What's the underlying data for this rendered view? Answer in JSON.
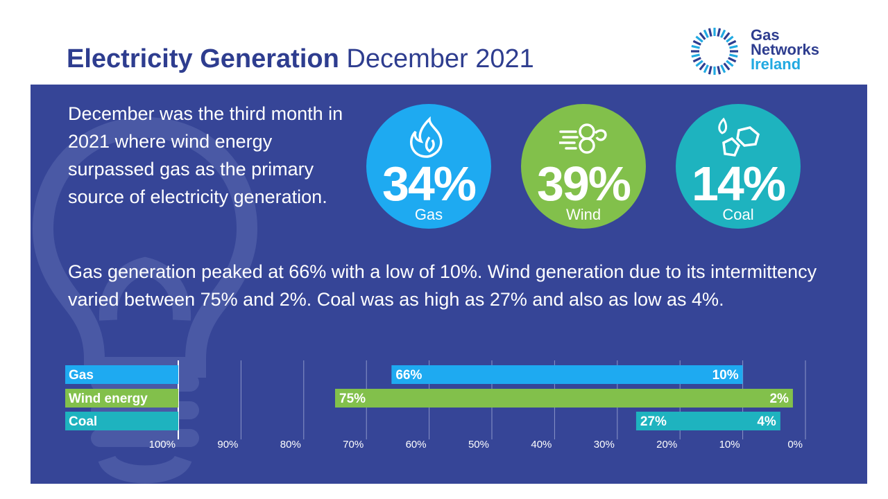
{
  "header": {
    "title_bold": "Electricity Generation",
    "title_light": "December 2021",
    "logo_line1": "Gas",
    "logo_line2": "Networks",
    "logo_line3": "Ireland"
  },
  "intro_text": "December was the third month in 2021 where wind energy surpassed gas as the primary source of electricity generation.",
  "summary_text": "Gas generation peaked at 66% with a low of 10%.  Wind generation due to its intermittency varied between 75% and 2%.  Coal was as high as 27% and also as low as 4%.",
  "stats": [
    {
      "value": "34%",
      "label": "Gas",
      "color": "#1eaaf1",
      "icon": "flame-icon"
    },
    {
      "value": "39%",
      "label": "Wind",
      "color": "#82c04b",
      "icon": "wind-icon"
    },
    {
      "value": "14%",
      "label": "Coal",
      "color": "#1eb3bf",
      "icon": "coal-icon"
    }
  ],
  "chart_data": {
    "type": "bar",
    "orientation": "horizontal-range",
    "x_axis_reversed": true,
    "xlim": [
      0,
      100
    ],
    "ticks": [
      "100%",
      "90%",
      "80%",
      "70%",
      "60%",
      "50%",
      "40%",
      "30%",
      "20%",
      "10%",
      "0%"
    ],
    "series": [
      {
        "name": "Gas",
        "high": 66,
        "low": 10,
        "high_label": "66%",
        "low_label": "10%",
        "color": "#1eaaf1"
      },
      {
        "name": "Wind energy",
        "high": 75,
        "low": 2,
        "high_label": "75%",
        "low_label": "2%",
        "color": "#82c04b"
      },
      {
        "name": "Coal",
        "high": 27,
        "low": 4,
        "high_label": "27%",
        "low_label": "4%",
        "color": "#1eb3bf"
      }
    ]
  },
  "colors": {
    "panel": "#364597",
    "title": "#2e3d8f",
    "accent": "#21a9e1"
  }
}
